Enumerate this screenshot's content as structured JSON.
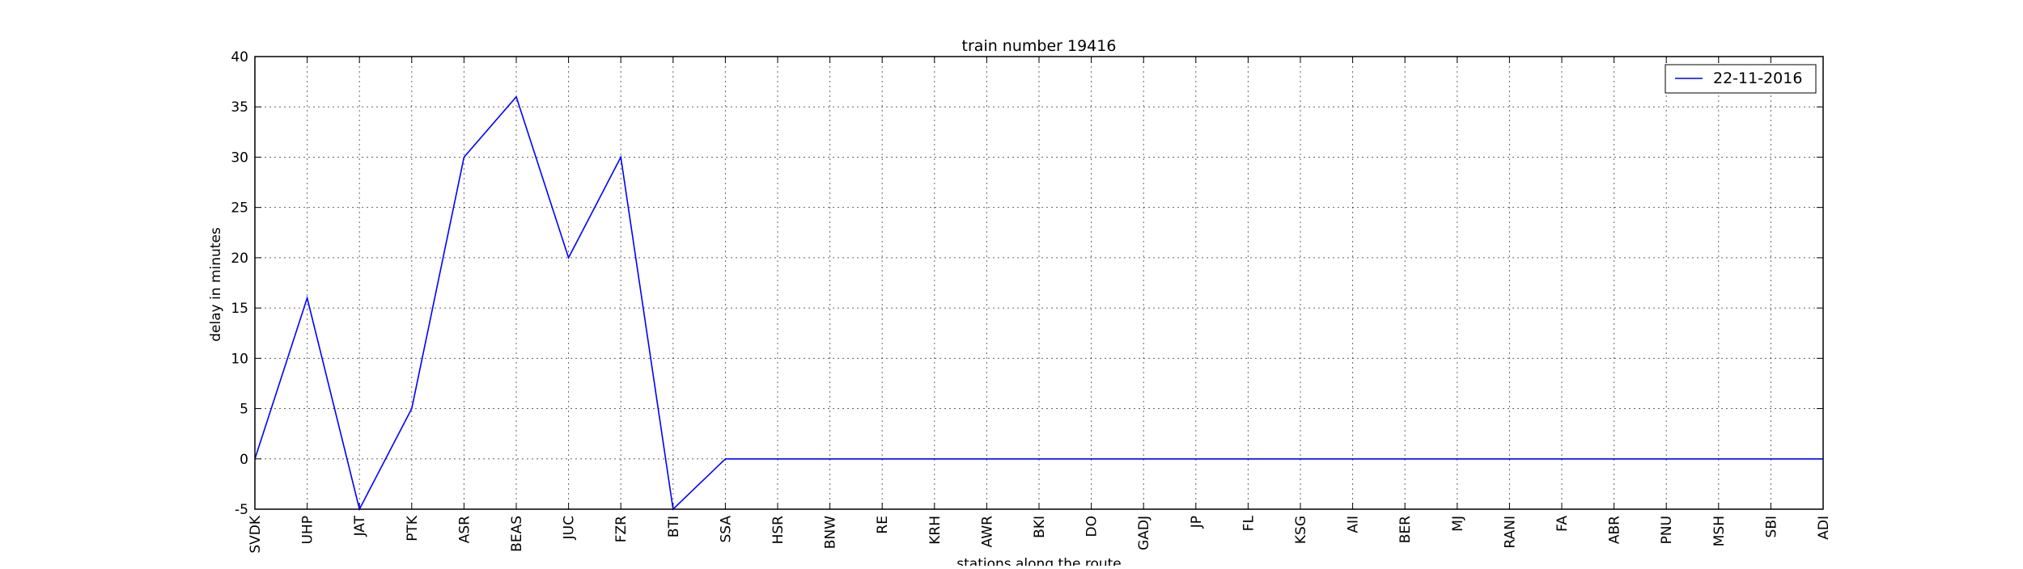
{
  "chart_data": {
    "type": "line",
    "title": "train number 19416",
    "xlabel": "stations along the route",
    "ylabel": "delay in minutes",
    "ylim": [
      -5,
      40
    ],
    "yticks": [
      -5,
      0,
      5,
      10,
      15,
      20,
      25,
      30,
      35,
      40
    ],
    "grid": true,
    "legend_position": "top-right",
    "categories": [
      "SVDK",
      "UHP",
      "JAT",
      "PTK",
      "ASR",
      "BEAS",
      "JUC",
      "FZR",
      "BTI",
      "SSA",
      "HSR",
      "BNW",
      "RE",
      "KRH",
      "AWR",
      "BKI",
      "DO",
      "GADJ",
      "JP",
      "FL",
      "KSG",
      "AII",
      "BER",
      "MJ",
      "RANI",
      "FA",
      "ABR",
      "PNU",
      "MSH",
      "SBI",
      "ADI"
    ],
    "series": [
      {
        "name": "22-11-2016",
        "color": "#0000ff",
        "values": [
          0,
          16,
          -5,
          5,
          30,
          36,
          20,
          30,
          -5,
          0,
          0,
          0,
          0,
          0,
          0,
          0,
          0,
          0,
          0,
          0,
          0,
          0,
          0,
          0,
          0,
          0,
          0,
          0,
          0,
          0,
          0
        ]
      }
    ]
  }
}
